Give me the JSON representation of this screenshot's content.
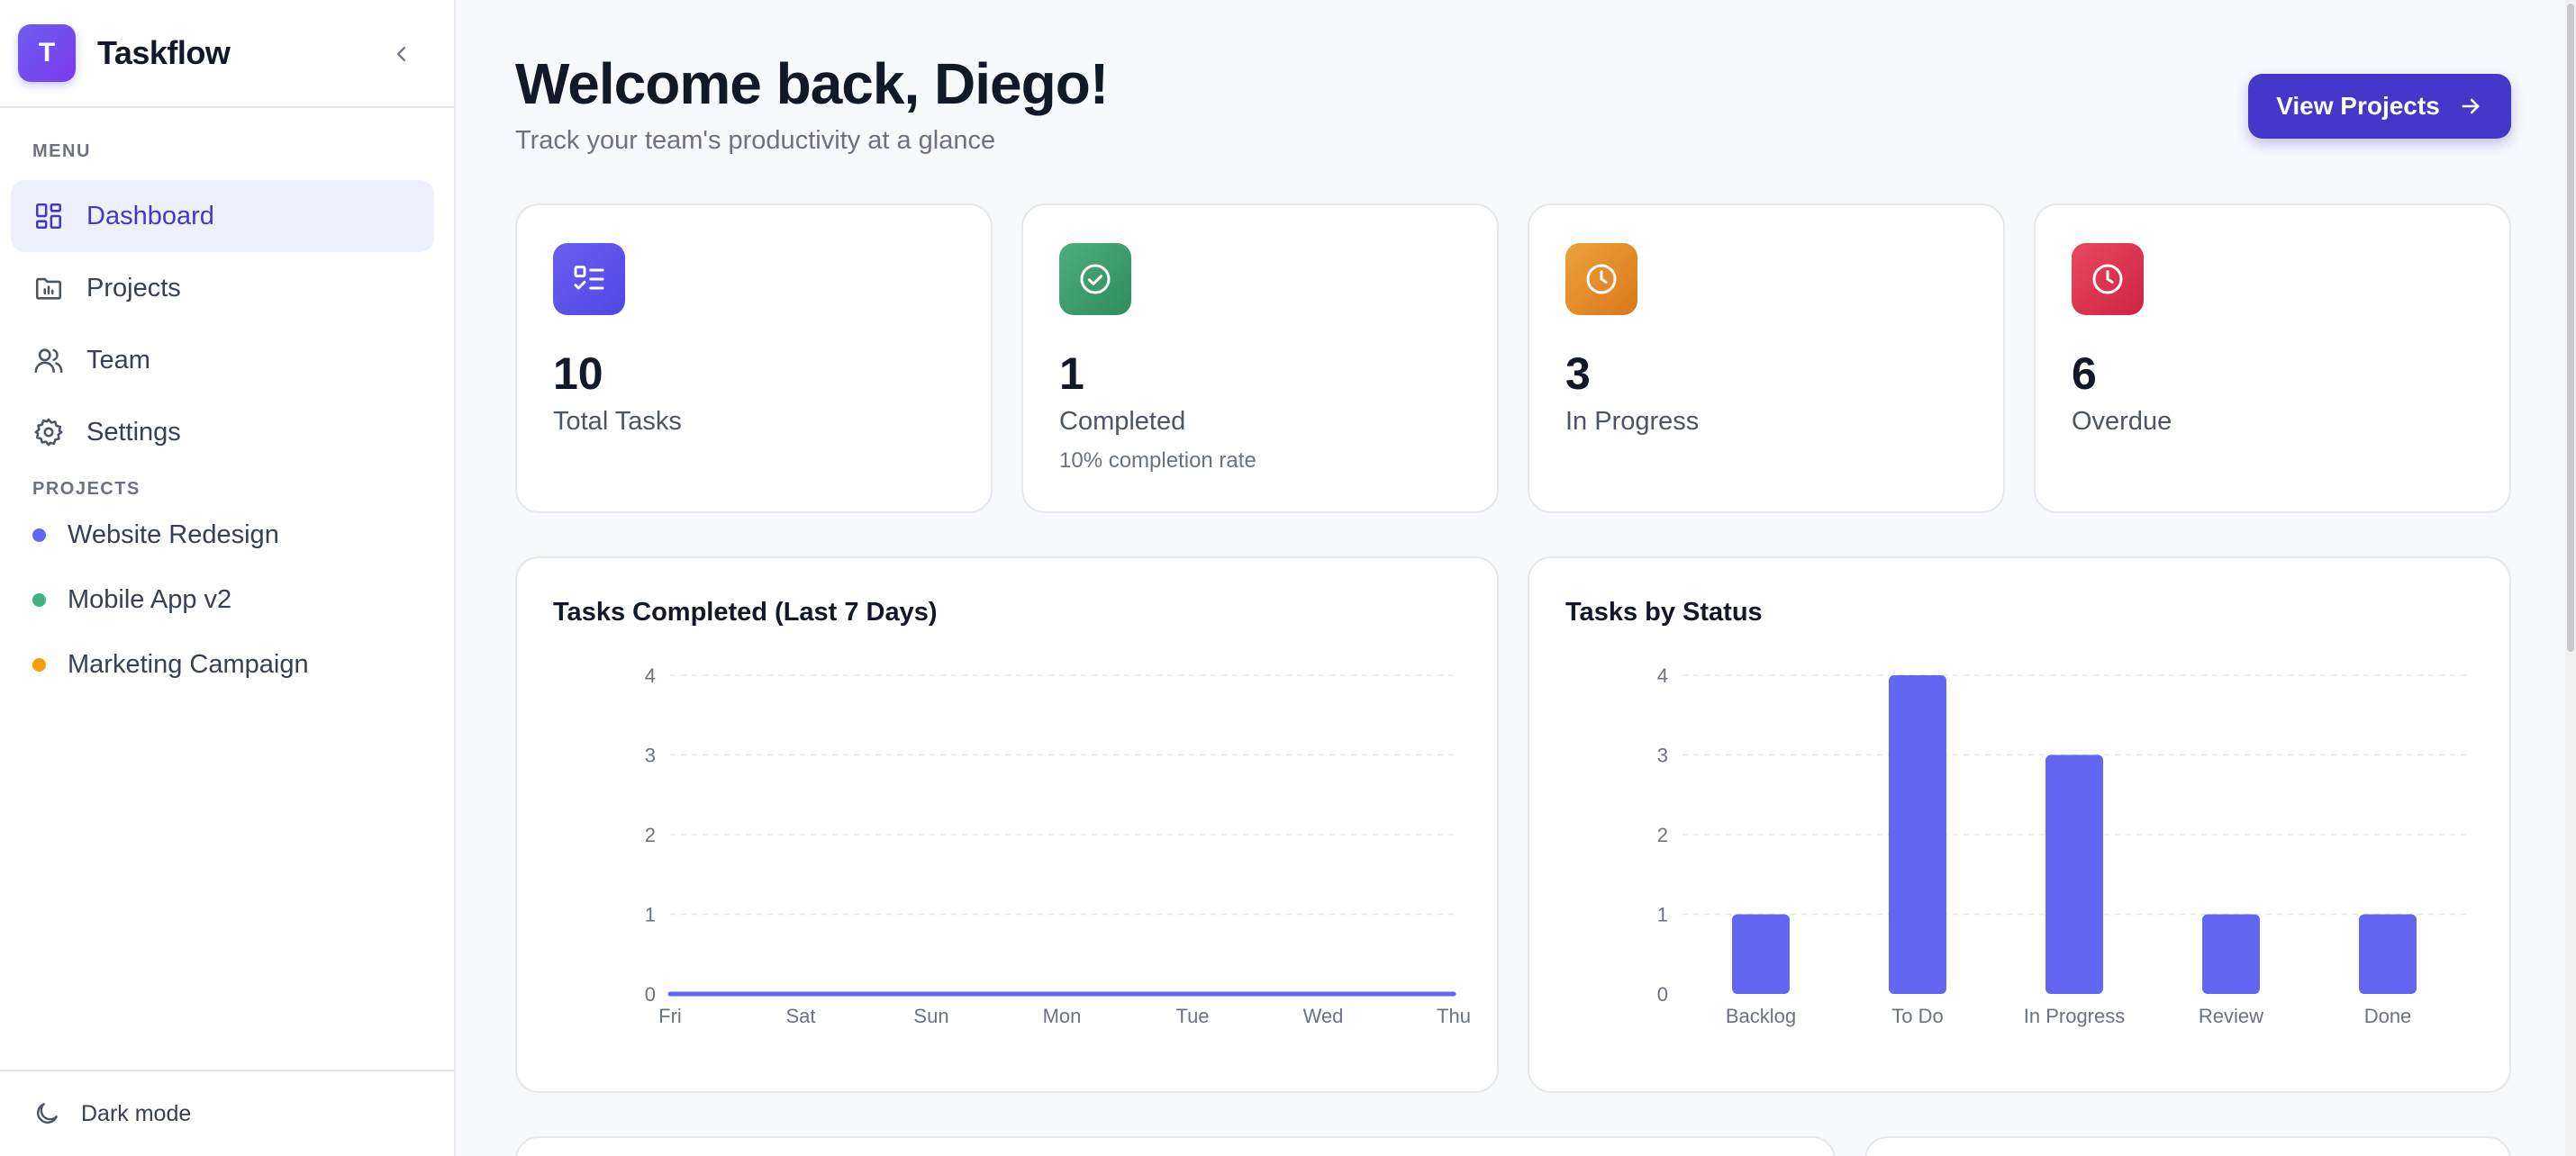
{
  "app": {
    "name": "Taskflow",
    "logo_letter": "T"
  },
  "sidebar": {
    "menu_label": "MENU",
    "items": [
      {
        "label": "Dashboard",
        "icon": "dashboard-icon",
        "active": true
      },
      {
        "label": "Projects",
        "icon": "folder-icon",
        "active": false
      },
      {
        "label": "Team",
        "icon": "users-icon",
        "active": false
      },
      {
        "label": "Settings",
        "icon": "gear-icon",
        "active": false
      }
    ],
    "projects_label": "PROJECTS",
    "projects": [
      {
        "label": "Website Redesign",
        "color": "#6366f1"
      },
      {
        "label": "Mobile App v2",
        "color": "#3fb27f"
      },
      {
        "label": "Marketing Campaign",
        "color": "#f59e0b"
      }
    ],
    "footer": {
      "label": "Dark mode",
      "icon": "moon-icon"
    }
  },
  "header": {
    "title": "Welcome back, Diego!",
    "subtitle": "Track your team's productivity at a glance",
    "primary_button": "View Projects"
  },
  "stats": [
    {
      "value": "10",
      "label": "Total Tasks",
      "sub": "",
      "icon": "checklist-icon",
      "color": "#5b50e6"
    },
    {
      "value": "1",
      "label": "Completed",
      "sub": "10% completion rate",
      "icon": "check-circle-icon",
      "color": "#3f9e6e"
    },
    {
      "value": "3",
      "label": "In Progress",
      "sub": "",
      "icon": "clock-icon",
      "color": "#e08a26"
    },
    {
      "value": "6",
      "label": "Overdue",
      "sub": "",
      "icon": "clock-icon",
      "color": "#db3652"
    }
  ],
  "colors": {
    "accent": "#4338ca",
    "series": "#6366f1"
  },
  "chart_data": [
    {
      "type": "line",
      "title": "Tasks Completed (Last 7 Days)",
      "categories": [
        "Fri",
        "Sat",
        "Sun",
        "Mon",
        "Tue",
        "Wed",
        "Thu"
      ],
      "values": [
        0,
        0,
        0,
        0,
        0,
        0,
        0
      ],
      "ylim": [
        0,
        4
      ],
      "yticks": [
        0,
        1,
        2,
        3,
        4
      ],
      "grid": true
    },
    {
      "type": "bar",
      "title": "Tasks by Status",
      "categories": [
        "Backlog",
        "To Do",
        "In Progress",
        "Review",
        "Done"
      ],
      "values": [
        1,
        4,
        3,
        1,
        1
      ],
      "ylim": [
        0,
        4
      ],
      "yticks": [
        0,
        1,
        2,
        3,
        4
      ],
      "grid": true
    }
  ]
}
